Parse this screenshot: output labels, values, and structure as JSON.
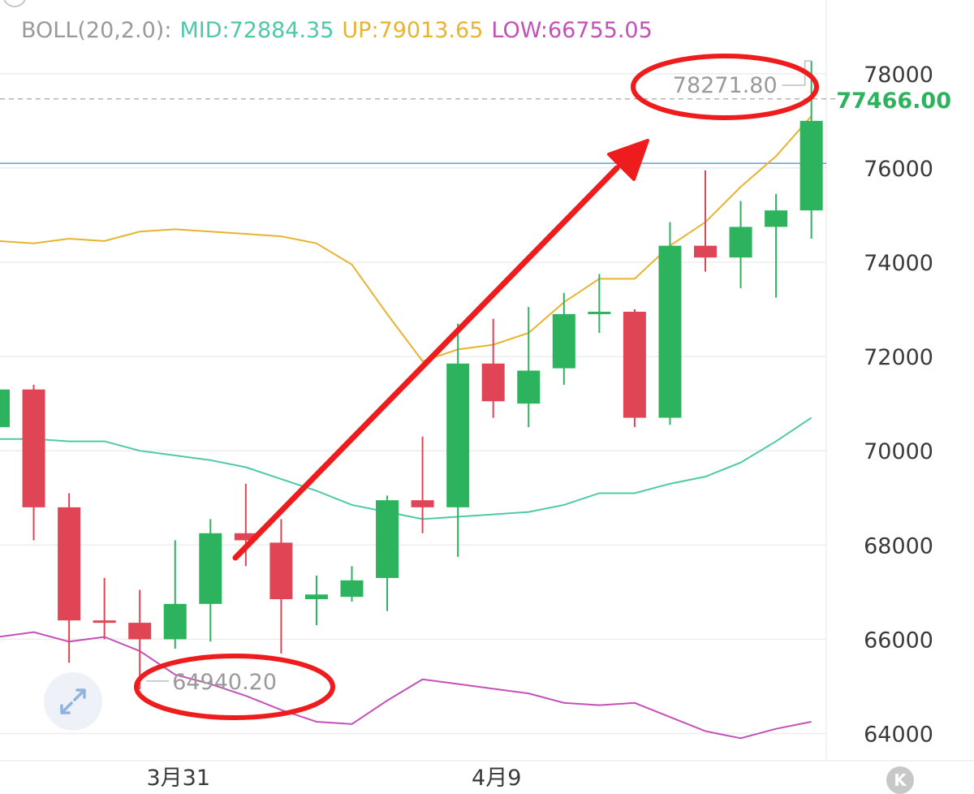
{
  "legend": {
    "label": "BOLL(20,2.0):",
    "mid": "MID:72884.35",
    "up": "UP:79013.65",
    "low": "LOW:66755.05"
  },
  "colors": {
    "mid": "#4ec9a8",
    "up": "#e8b430",
    "low": "#c451b8",
    "rise": "#2db35d",
    "fall": "#e04555",
    "annotation": "#ee1c1c",
    "current_price": "#2db35d",
    "reference_line": "#3b8fd0"
  },
  "high_label": "78271.80",
  "low_label": "64940.20",
  "current_price_label": "77466.00",
  "icons": {
    "expand": "expand-arrows-icon",
    "k_button": "k-line-icon"
  },
  "k_button_label": "K",
  "chart_data": {
    "type": "candlestick",
    "y_range": [
      63200,
      78800
    ],
    "y_ticks": [
      "64000",
      "66000",
      "68000",
      "70000",
      "72000",
      "74000",
      "76000",
      "78000"
    ],
    "x_tick_labels": [
      {
        "label": "3月31",
        "candle_index": 5
      },
      {
        "label": "4月9",
        "candle_index": 14
      }
    ],
    "current_price": 77466.0,
    "reference_line": 76100,
    "highest": {
      "value": 78271.8,
      "candle_index": 23
    },
    "lowest": {
      "value": 64940.2,
      "candle_index": 4
    },
    "candles": [
      {
        "o": 70500,
        "h": 71350,
        "l": 70500,
        "c": 71300
      },
      {
        "o": 71300,
        "h": 71400,
        "l": 68100,
        "c": 68800
      },
      {
        "o": 68800,
        "h": 69100,
        "l": 65500,
        "c": 66400
      },
      {
        "o": 66400,
        "h": 67300,
        "l": 66000,
        "c": 66350
      },
      {
        "o": 66350,
        "h": 67050,
        "l": 64940.2,
        "c": 66000
      },
      {
        "o": 66000,
        "h": 68100,
        "l": 65800,
        "c": 66750
      },
      {
        "o": 66750,
        "h": 68550,
        "l": 65950,
        "c": 68250
      },
      {
        "o": 68250,
        "h": 69300,
        "l": 67550,
        "c": 68100
      },
      {
        "o": 68050,
        "h": 68550,
        "l": 65700,
        "c": 66850
      },
      {
        "o": 66850,
        "h": 67350,
        "l": 66300,
        "c": 66950
      },
      {
        "o": 66900,
        "h": 67550,
        "l": 66800,
        "c": 67250
      },
      {
        "o": 67300,
        "h": 69050,
        "l": 66600,
        "c": 68950
      },
      {
        "o": 68950,
        "h": 70300,
        "l": 68250,
        "c": 68800
      },
      {
        "o": 68800,
        "h": 72700,
        "l": 67750,
        "c": 71850
      },
      {
        "o": 71850,
        "h": 72800,
        "l": 70700,
        "c": 71050
      },
      {
        "o": 71000,
        "h": 73050,
        "l": 70500,
        "c": 71700
      },
      {
        "o": 71750,
        "h": 73350,
        "l": 71400,
        "c": 72900
      },
      {
        "o": 72900,
        "h": 73750,
        "l": 72500,
        "c": 72950
      },
      {
        "o": 72950,
        "h": 73000,
        "l": 70500,
        "c": 70700
      },
      {
        "o": 70700,
        "h": 74850,
        "l": 70550,
        "c": 74350
      },
      {
        "o": 74350,
        "h": 75950,
        "l": 73800,
        "c": 74100
      },
      {
        "o": 74100,
        "h": 75300,
        "l": 73450,
        "c": 74750
      },
      {
        "o": 74750,
        "h": 75450,
        "l": 73250,
        "c": 75100
      },
      {
        "o": 75100,
        "h": 78271.8,
        "l": 74500,
        "c": 77000
      }
    ],
    "bands": {
      "up": [
        74450,
        74400,
        74500,
        74450,
        74650,
        74700,
        74650,
        74600,
        74550,
        74400,
        73950,
        72900,
        71900,
        72150,
        72250,
        72500,
        73150,
        73650,
        73650,
        74350,
        74850,
        75600,
        76250,
        77100
      ],
      "mid": [
        70250,
        70250,
        70200,
        70200,
        70000,
        69900,
        69800,
        69650,
        69400,
        69150,
        68850,
        68700,
        68550,
        68600,
        68650,
        68700,
        68850,
        69100,
        69100,
        69300,
        69450,
        69750,
        70200,
        70700
      ],
      "low": [
        66050,
        66150,
        65950,
        66050,
        65750,
        65250,
        65050,
        64800,
        64500,
        64250,
        64200,
        64700,
        65150,
        65050,
        64950,
        64850,
        64650,
        64600,
        64650,
        64350,
        64050,
        63900,
        64100,
        64250
      ]
    }
  }
}
